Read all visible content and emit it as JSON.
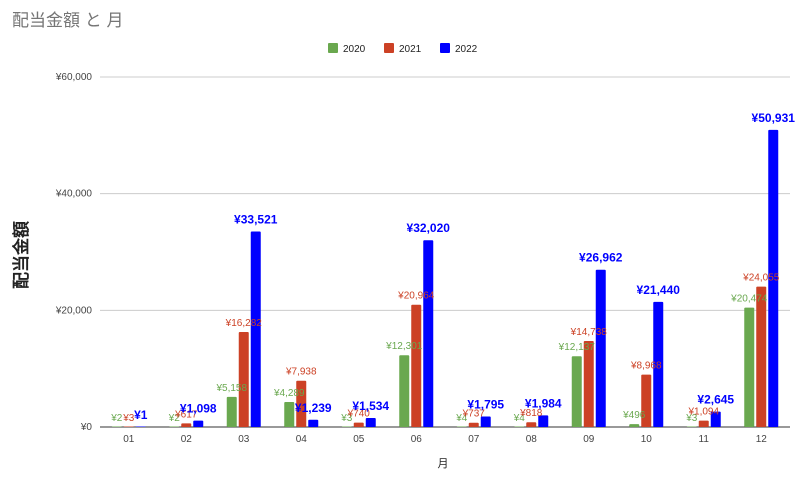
{
  "chart_data": {
    "type": "bar",
    "title": "配当金額 と 月",
    "xlabel": "月",
    "ylabel": "配当金額",
    "categories": [
      "01",
      "02",
      "03",
      "04",
      "05",
      "06",
      "07",
      "08",
      "09",
      "10",
      "11",
      "12"
    ],
    "series": [
      {
        "name": "2020",
        "color": "#6aa84f",
        "values": [
          2,
          2,
          5158,
          4289,
          3,
          12301,
          4,
          4,
          12137,
          496,
          3,
          20474
        ],
        "labels": [
          "¥2",
          "¥2",
          "¥5,158",
          "¥4,289",
          "¥3",
          "¥12,301",
          "¥4",
          "¥4",
          "¥12,137",
          "¥496",
          "¥3",
          "¥20,474"
        ]
      },
      {
        "name": "2021",
        "color": "#cc4125",
        "values": [
          3,
          617,
          16282,
          7938,
          740,
          20964,
          737,
          818,
          14738,
          8968,
          1094,
          24055
        ],
        "labels": [
          "¥3",
          "¥617",
          "¥16,282",
          "¥7,938",
          "¥740",
          "¥20,964",
          "¥737",
          "¥818",
          "¥14,738",
          "¥8,968",
          "¥1,094",
          "¥24,055"
        ]
      },
      {
        "name": "2022",
        "color": "#0000ff",
        "values": [
          1,
          1098,
          33521,
          1239,
          1534,
          32020,
          1795,
          1984,
          26962,
          21440,
          2645,
          50931
        ],
        "labels": [
          "¥1",
          "¥1,098",
          "¥33,521",
          "¥1,239",
          "¥1,534",
          "¥32,020",
          "¥1,795",
          "¥1,984",
          "¥26,962",
          "¥21,440",
          "¥2,645",
          "¥50,931"
        ]
      }
    ],
    "ylim": [
      0,
      60000
    ],
    "yticks": [
      0,
      20000,
      40000,
      60000
    ],
    "ytick_labels": [
      "¥0",
      "¥20,000",
      "¥40,000",
      "¥60,000"
    ],
    "grid": true,
    "legend": "top-center"
  }
}
